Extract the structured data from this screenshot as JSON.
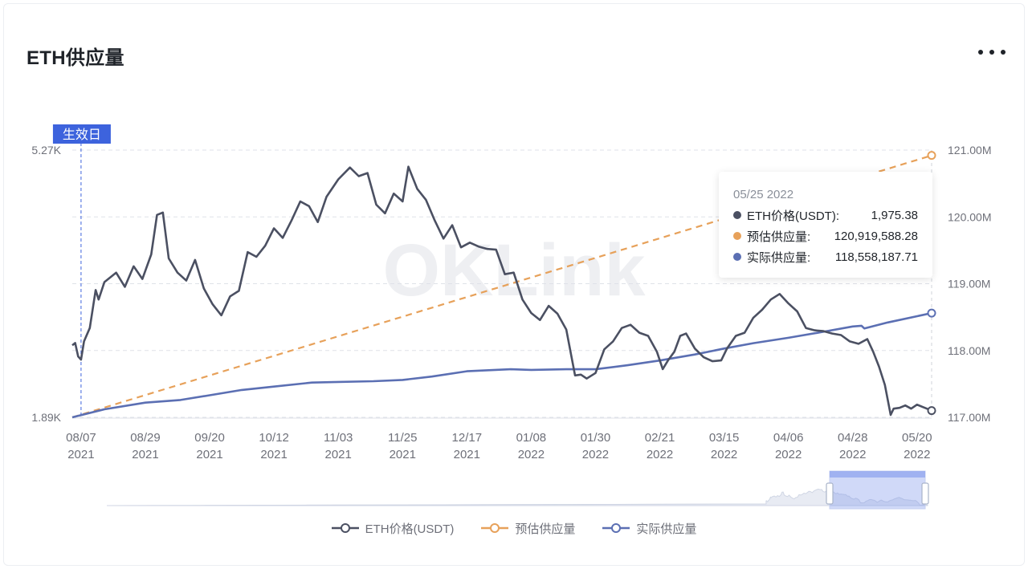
{
  "title": "ETH供应量",
  "watermark": "OKLink",
  "colors": {
    "price": "#4b5062",
    "estimated": "#e7a15a",
    "actual": "#5b6fb3",
    "marker": "#3d63dd"
  },
  "marker_label": "生效日",
  "tooltip": {
    "date": "05/25 2022",
    "rows": [
      {
        "label": "ETH价格(USDT):",
        "value": "1,975.38",
        "color": "#4b5062"
      },
      {
        "label": "预估供应量:",
        "value": "120,919,588.28",
        "color": "#e7a15a"
      },
      {
        "label": "实际供应量:",
        "value": "118,558,187.71",
        "color": "#5b6fb3"
      }
    ]
  },
  "legend": [
    {
      "label": "ETH价格(USDT)",
      "color": "#4b5062"
    },
    {
      "label": "预估供应量",
      "color": "#e7a15a"
    },
    {
      "label": "实际供应量",
      "color": "#5b6fb3"
    }
  ],
  "chart_data": {
    "type": "line",
    "x_ticks": [
      {
        "d": "08/07",
        "y": "2021"
      },
      {
        "d": "08/29",
        "y": "2021"
      },
      {
        "d": "09/20",
        "y": "2021"
      },
      {
        "d": "10/12",
        "y": "2021"
      },
      {
        "d": "11/03",
        "y": "2021"
      },
      {
        "d": "11/25",
        "y": "2021"
      },
      {
        "d": "12/17",
        "y": "2021"
      },
      {
        "d": "01/08",
        "y": "2022"
      },
      {
        "d": "01/30",
        "y": "2022"
      },
      {
        "d": "02/21",
        "y": "2022"
      },
      {
        "d": "03/15",
        "y": "2022"
      },
      {
        "d": "04/06",
        "y": "2022"
      },
      {
        "d": "04/28",
        "y": "2022"
      },
      {
        "d": "05/20",
        "y": "2022"
      }
    ],
    "x_start": "2021-08-04",
    "x_end": "2022-05-25",
    "marker_date": "2021-08-07",
    "left_axis": {
      "min": 1890,
      "max": 5270,
      "tick_labels": [
        "5.27K",
        "1.89K"
      ]
    },
    "right_axis": {
      "min": 117.0,
      "max": 121.0,
      "ticks": [
        "121.00M",
        "120.00M",
        "119.00M",
        "118.00M",
        "117.00M"
      ]
    },
    "grid": "dashed",
    "legend_position": "bottom-center",
    "series": [
      {
        "name": "ETH价格(USDT)",
        "axis": "left",
        "points": [
          [
            "2021-08-04",
            2800
          ],
          [
            "2021-08-05",
            2830
          ],
          [
            "2021-08-06",
            2660
          ],
          [
            "2021-08-07",
            2620
          ],
          [
            "2021-08-08",
            2850
          ],
          [
            "2021-08-10",
            3020
          ],
          [
            "2021-08-12",
            3500
          ],
          [
            "2021-08-13",
            3380
          ],
          [
            "2021-08-15",
            3600
          ],
          [
            "2021-08-19",
            3720
          ],
          [
            "2021-08-22",
            3540
          ],
          [
            "2021-08-25",
            3800
          ],
          [
            "2021-08-28",
            3640
          ],
          [
            "2021-08-31",
            3950
          ],
          [
            "2021-09-02",
            4450
          ],
          [
            "2021-09-04",
            4480
          ],
          [
            "2021-09-06",
            3900
          ],
          [
            "2021-09-09",
            3720
          ],
          [
            "2021-09-12",
            3620
          ],
          [
            "2021-09-15",
            3880
          ],
          [
            "2021-09-18",
            3520
          ],
          [
            "2021-09-21",
            3320
          ],
          [
            "2021-09-24",
            3180
          ],
          [
            "2021-09-27",
            3420
          ],
          [
            "2021-09-30",
            3490
          ],
          [
            "2021-10-03",
            3980
          ],
          [
            "2021-10-06",
            3920
          ],
          [
            "2021-10-09",
            4060
          ],
          [
            "2021-10-12",
            4280
          ],
          [
            "2021-10-15",
            4160
          ],
          [
            "2021-10-18",
            4380
          ],
          [
            "2021-10-21",
            4620
          ],
          [
            "2021-10-24",
            4560
          ],
          [
            "2021-10-27",
            4360
          ],
          [
            "2021-10-30",
            4680
          ],
          [
            "2021-11-03",
            4900
          ],
          [
            "2021-11-07",
            5050
          ],
          [
            "2021-11-10",
            4940
          ],
          [
            "2021-11-13",
            4980
          ],
          [
            "2021-11-16",
            4580
          ],
          [
            "2021-11-19",
            4470
          ],
          [
            "2021-11-22",
            4720
          ],
          [
            "2021-11-25",
            4620
          ],
          [
            "2021-11-27",
            5060
          ],
          [
            "2021-11-30",
            4780
          ],
          [
            "2021-12-03",
            4640
          ],
          [
            "2021-12-06",
            4380
          ],
          [
            "2021-12-09",
            4150
          ],
          [
            "2021-12-12",
            4320
          ],
          [
            "2021-12-15",
            4040
          ],
          [
            "2021-12-18",
            4100
          ],
          [
            "2021-12-21",
            4050
          ],
          [
            "2021-12-24",
            4020
          ],
          [
            "2021-12-27",
            4010
          ],
          [
            "2021-12-30",
            3700
          ],
          [
            "2022-01-02",
            3720
          ],
          [
            "2022-01-05",
            3380
          ],
          [
            "2022-01-08",
            3210
          ],
          [
            "2022-01-11",
            3120
          ],
          [
            "2022-01-14",
            3300
          ],
          [
            "2022-01-17",
            3200
          ],
          [
            "2022-01-20",
            3000
          ],
          [
            "2022-01-23",
            2420
          ],
          [
            "2022-01-25",
            2430
          ],
          [
            "2022-01-27",
            2380
          ],
          [
            "2022-01-30",
            2450
          ],
          [
            "2022-02-02",
            2750
          ],
          [
            "2022-02-05",
            2850
          ],
          [
            "2022-02-08",
            3020
          ],
          [
            "2022-02-11",
            3060
          ],
          [
            "2022-02-14",
            2960
          ],
          [
            "2022-02-17",
            2920
          ],
          [
            "2022-02-20",
            2720
          ],
          [
            "2022-02-22",
            2500
          ],
          [
            "2022-02-24",
            2620
          ],
          [
            "2022-02-26",
            2720
          ],
          [
            "2022-02-28",
            2920
          ],
          [
            "2022-03-02",
            2950
          ],
          [
            "2022-03-05",
            2760
          ],
          [
            "2022-03-08",
            2650
          ],
          [
            "2022-03-11",
            2600
          ],
          [
            "2022-03-14",
            2610
          ],
          [
            "2022-03-16",
            2760
          ],
          [
            "2022-03-19",
            2920
          ],
          [
            "2022-03-22",
            2960
          ],
          [
            "2022-03-25",
            3150
          ],
          [
            "2022-03-28",
            3250
          ],
          [
            "2022-03-31",
            3380
          ],
          [
            "2022-04-03",
            3450
          ],
          [
            "2022-04-06",
            3330
          ],
          [
            "2022-04-09",
            3230
          ],
          [
            "2022-04-12",
            3020
          ],
          [
            "2022-04-15",
            2990
          ],
          [
            "2022-04-18",
            2980
          ],
          [
            "2022-04-21",
            2950
          ],
          [
            "2022-04-24",
            2930
          ],
          [
            "2022-04-27",
            2850
          ],
          [
            "2022-04-30",
            2820
          ],
          [
            "2022-05-03",
            2880
          ],
          [
            "2022-05-05",
            2720
          ],
          [
            "2022-05-07",
            2530
          ],
          [
            "2022-05-09",
            2300
          ],
          [
            "2022-05-11",
            1920
          ],
          [
            "2022-05-12",
            2000
          ],
          [
            "2022-05-14",
            2010
          ],
          [
            "2022-05-16",
            2040
          ],
          [
            "2022-05-18",
            2000
          ],
          [
            "2022-05-20",
            2050
          ],
          [
            "2022-05-22",
            2020
          ],
          [
            "2022-05-25",
            1975
          ]
        ]
      },
      {
        "name": "预估供应量",
        "axis": "right",
        "points": [
          [
            "2021-08-04",
            117.0
          ],
          [
            "2022-05-25",
            120.92
          ]
        ]
      },
      {
        "name": "实际供应量",
        "axis": "right",
        "points": [
          [
            "2021-08-04",
            117.0
          ],
          [
            "2021-08-15",
            117.12
          ],
          [
            "2021-08-29",
            117.22
          ],
          [
            "2021-09-10",
            117.26
          ],
          [
            "2021-09-20",
            117.33
          ],
          [
            "2021-10-01",
            117.41
          ],
          [
            "2021-10-12",
            117.46
          ],
          [
            "2021-10-25",
            117.52
          ],
          [
            "2021-11-03",
            117.53
          ],
          [
            "2021-11-15",
            117.54
          ],
          [
            "2021-11-25",
            117.56
          ],
          [
            "2021-12-05",
            117.61
          ],
          [
            "2021-12-17",
            117.69
          ],
          [
            "2022-01-01",
            117.72
          ],
          [
            "2022-01-08",
            117.71
          ],
          [
            "2022-01-20",
            117.72
          ],
          [
            "2022-01-30",
            117.72
          ],
          [
            "2022-02-10",
            117.78
          ],
          [
            "2022-02-21",
            117.85
          ],
          [
            "2022-03-05",
            117.94
          ],
          [
            "2022-03-15",
            118.03
          ],
          [
            "2022-03-25",
            118.11
          ],
          [
            "2022-04-06",
            118.19
          ],
          [
            "2022-04-18",
            118.28
          ],
          [
            "2022-04-28",
            118.36
          ],
          [
            "2022-05-01",
            118.37
          ],
          [
            "2022-05-02",
            118.33
          ],
          [
            "2022-05-10",
            118.42
          ],
          [
            "2022-05-25",
            118.56
          ]
        ]
      }
    ]
  }
}
